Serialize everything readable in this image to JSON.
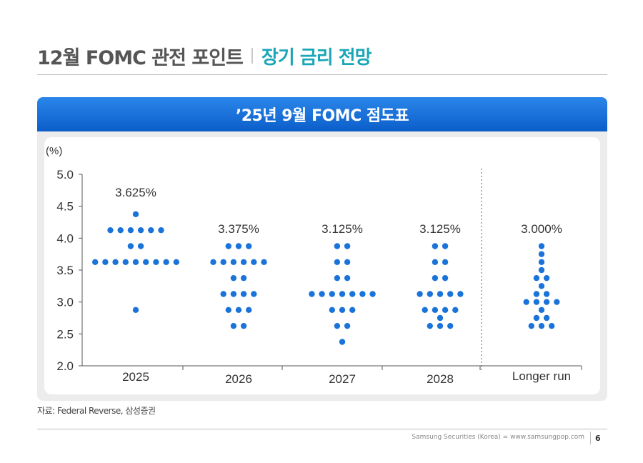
{
  "header": {
    "title_main": "12월 FOMC 관전 포인트",
    "title_sub": "장기 금리 전망"
  },
  "banner": {
    "title": "’25년 9월 FOMC 점도표"
  },
  "chart_data": {
    "type": "scatter",
    "title": "’25년 9월 FOMC 점도표",
    "ylabel": "(%)",
    "ylim": [
      2.0,
      5.0
    ],
    "yticks": [
      "5.0",
      "4.5",
      "4.0",
      "3.5",
      "3.0",
      "2.5",
      "2.0"
    ],
    "categories": [
      "2025",
      "2026",
      "2027",
      "2028",
      "Longer run"
    ],
    "medians": [
      "3.625%",
      "3.375%",
      "3.125%",
      "3.125%",
      "3.000%"
    ],
    "dots": [
      {
        "category": "2025",
        "points": [
          {
            "rate": 4.375,
            "count": 1
          },
          {
            "rate": 4.125,
            "count": 6
          },
          {
            "rate": 3.875,
            "count": 2
          },
          {
            "rate": 3.625,
            "count": 9
          },
          {
            "rate": 2.875,
            "count": 1
          }
        ]
      },
      {
        "category": "2026",
        "points": [
          {
            "rate": 3.875,
            "count": 3
          },
          {
            "rate": 3.625,
            "count": 6
          },
          {
            "rate": 3.375,
            "count": 2
          },
          {
            "rate": 3.125,
            "count": 4
          },
          {
            "rate": 2.875,
            "count": 3
          },
          {
            "rate": 2.625,
            "count": 2
          }
        ]
      },
      {
        "category": "2027",
        "points": [
          {
            "rate": 3.875,
            "count": 2
          },
          {
            "rate": 3.625,
            "count": 2
          },
          {
            "rate": 3.375,
            "count": 2
          },
          {
            "rate": 3.125,
            "count": 7
          },
          {
            "rate": 2.875,
            "count": 3
          },
          {
            "rate": 2.625,
            "count": 2
          },
          {
            "rate": 2.375,
            "count": 1
          }
        ]
      },
      {
        "category": "2028",
        "points": [
          {
            "rate": 3.875,
            "count": 2
          },
          {
            "rate": 3.625,
            "count": 2
          },
          {
            "rate": 3.375,
            "count": 2
          },
          {
            "rate": 3.125,
            "count": 5
          },
          {
            "rate": 2.875,
            "count": 4
          },
          {
            "rate": 2.75,
            "count": 1
          },
          {
            "rate": 2.625,
            "count": 3
          }
        ]
      },
      {
        "category": "Longer run",
        "points": [
          {
            "rate": 3.875,
            "count": 1
          },
          {
            "rate": 3.75,
            "count": 1
          },
          {
            "rate": 3.625,
            "count": 1
          },
          {
            "rate": 3.5,
            "count": 1
          },
          {
            "rate": 3.375,
            "count": 2
          },
          {
            "rate": 3.25,
            "count": 1
          },
          {
            "rate": 3.125,
            "count": 2
          },
          {
            "rate": 3.0,
            "count": 4
          },
          {
            "rate": 2.875,
            "count": 1
          },
          {
            "rate": 2.75,
            "count": 2
          },
          {
            "rate": 2.625,
            "count": 3
          }
        ]
      }
    ],
    "dot_color": "#1a73d9",
    "grid": false
  },
  "source": "자료: Federal Reverse, 삼성증권",
  "footer": {
    "text": "Samsung Securities (Korea) = www.samsungpop.com",
    "page": "6"
  }
}
